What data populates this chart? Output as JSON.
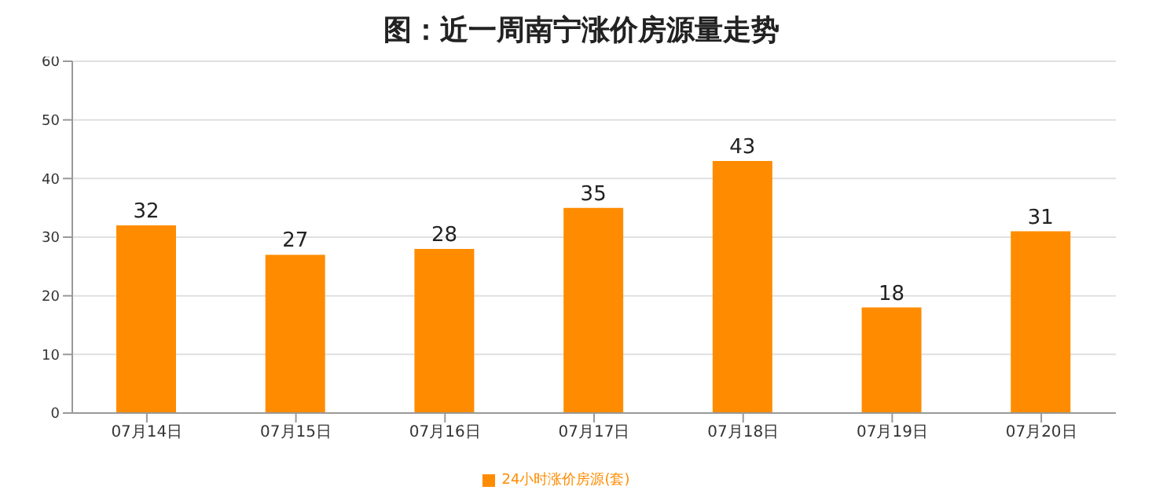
{
  "chart_data": {
    "type": "bar",
    "title": "图：近一周南宁涨价房源量走势",
    "categories": [
      "07月14日",
      "07月15日",
      "07月16日",
      "07月17日",
      "07月18日",
      "07月19日",
      "07月20日"
    ],
    "series": [
      {
        "name": "24小时涨价房源(套)",
        "color": "#ff8c00",
        "values": [
          32,
          27,
          28,
          35,
          43,
          18,
          31
        ]
      }
    ],
    "ylim": [
      0,
      60
    ],
    "yticks": [
      0,
      10,
      20,
      30,
      40,
      50,
      60
    ],
    "grid": "y",
    "legend": "bottom",
    "data_labels": true
  }
}
